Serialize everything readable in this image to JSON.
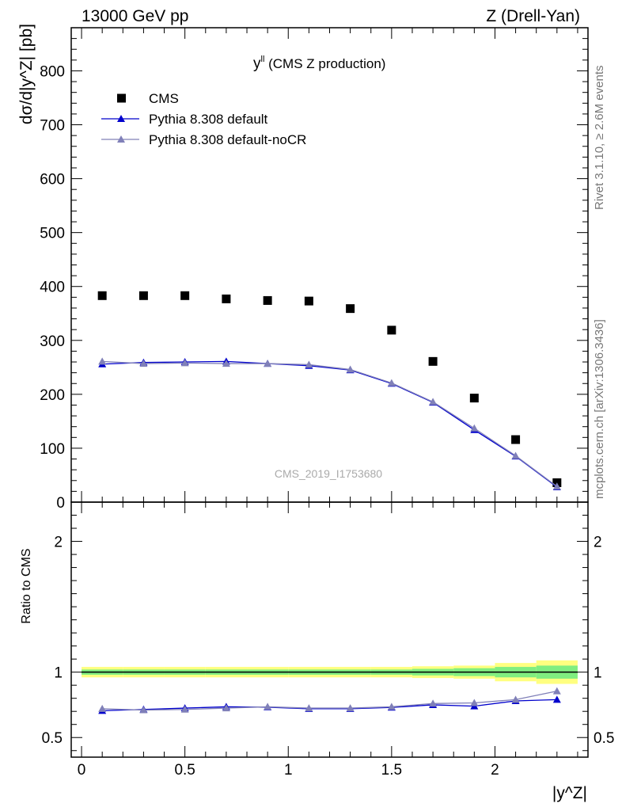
{
  "header": {
    "left": "13000 GeV pp",
    "right": "Z (Drell-Yan)"
  },
  "side_labels": {
    "rivet": "Rivet 3.1.10, ≥ 2.6M events",
    "mcplots": "mcplots.cern.ch [arXiv:1306.3436]"
  },
  "watermark": "CMS_2019_I1753680",
  "chart_data": [
    {
      "type": "scatter",
      "title": "yˡˡ (CMS Z production)",
      "title_main": "y",
      "title_sup": "ll",
      "title_rest": " (CMS Z production)",
      "ylabel": "dσ/d|y^Z| [pb]",
      "ylim": [
        0,
        880
      ],
      "yticks": [
        0,
        100,
        200,
        300,
        400,
        500,
        600,
        700,
        800
      ],
      "xlim": [
        -0.05,
        2.45
      ],
      "legend": "top-left",
      "series": [
        {
          "name": "CMS",
          "marker": "square",
          "color": "#000000",
          "x": [
            0.1,
            0.3,
            0.5,
            0.7,
            0.9,
            1.1,
            1.3,
            1.5,
            1.7,
            1.9,
            2.1,
            2.3
          ],
          "values": [
            383,
            383,
            383,
            377,
            374,
            373,
            359,
            319,
            261,
            193,
            116,
            36
          ]
        },
        {
          "name": "Pythia 8.308 default",
          "marker": "triangle",
          "color": "#0000cc",
          "x": [
            0.1,
            0.3,
            0.5,
            0.7,
            0.9,
            1.1,
            1.3,
            1.5,
            1.7,
            1.9,
            2.1,
            2.3
          ],
          "values": [
            256,
            259,
            260,
            261,
            257,
            253,
            245,
            220,
            185,
            134,
            85,
            28
          ]
        },
        {
          "name": "Pythia 8.308 default-noCR",
          "marker": "triangle",
          "color": "#8080b8",
          "x": [
            0.1,
            0.3,
            0.5,
            0.7,
            0.9,
            1.1,
            1.3,
            1.5,
            1.7,
            1.9,
            2.1,
            2.3
          ],
          "values": [
            261,
            257,
            258,
            257,
            257,
            255,
            246,
            221,
            186,
            137,
            86,
            29
          ]
        }
      ]
    },
    {
      "type": "line",
      "ylabel": "Ratio to CMS",
      "xlabel": "|y^Z|",
      "ylim": [
        0.35,
        2.3
      ],
      "yticks": [
        0.5,
        1,
        2
      ],
      "xticks": [
        0,
        0.5,
        1,
        1.5,
        2
      ],
      "xlim": [
        -0.05,
        2.45
      ],
      "band_colors": {
        "outer": "#ffff80",
        "inner": "#80ee80"
      },
      "band_edges": [
        0.0,
        0.2,
        0.4,
        0.6,
        0.8,
        1.0,
        1.2,
        1.4,
        1.6,
        1.8,
        2.0,
        2.2,
        2.4
      ],
      "band_outer_halfwidth": [
        0.04,
        0.04,
        0.04,
        0.04,
        0.04,
        0.04,
        0.04,
        0.04,
        0.045,
        0.05,
        0.07,
        0.09
      ],
      "band_inner_halfwidth": [
        0.02,
        0.02,
        0.02,
        0.02,
        0.02,
        0.02,
        0.02,
        0.02,
        0.025,
        0.03,
        0.04,
        0.05
      ],
      "series": [
        {
          "name": "Pythia 8.308 default",
          "color": "#0000cc",
          "x": [
            0.1,
            0.3,
            0.5,
            0.7,
            0.9,
            1.1,
            1.3,
            1.5,
            1.7,
            1.9,
            2.1,
            2.3
          ],
          "values": [
            0.705,
            0.715,
            0.725,
            0.735,
            0.732,
            0.72,
            0.72,
            0.73,
            0.75,
            0.74,
            0.78,
            0.79
          ]
        },
        {
          "name": "Pythia 8.308 default-noCR",
          "color": "#8080b8",
          "x": [
            0.1,
            0.3,
            0.5,
            0.7,
            0.9,
            1.1,
            1.3,
            1.5,
            1.7,
            1.9,
            2.1,
            2.3
          ],
          "values": [
            0.72,
            0.71,
            0.715,
            0.725,
            0.735,
            0.725,
            0.725,
            0.735,
            0.76,
            0.765,
            0.79,
            0.855
          ]
        }
      ]
    }
  ]
}
